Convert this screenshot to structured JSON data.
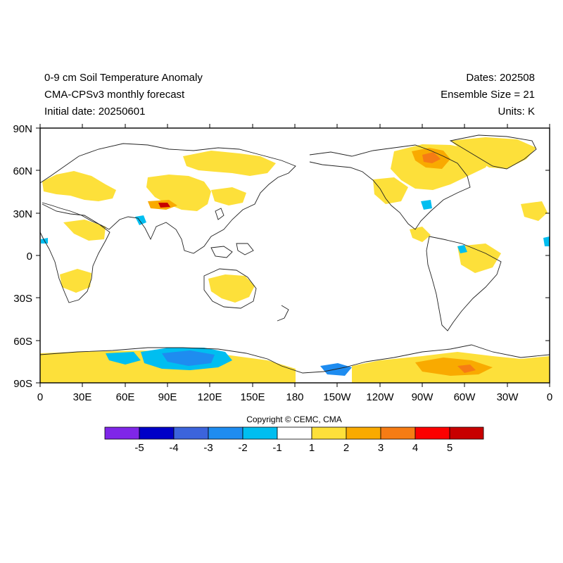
{
  "header": {
    "title_line1": "0-9 cm Soil Temperature Anomaly",
    "title_line2": "CMA-CPSv3 monthly forecast",
    "title_line3": "Initial date: 20250601",
    "dates": "Dates: 202508",
    "ensemble": "Ensemble Size = 21",
    "units": "Units: K"
  },
  "axes": {
    "lat_labels": [
      "90N",
      "60N",
      "30N",
      "0",
      "30S",
      "60S",
      "90S"
    ],
    "lon_labels": [
      "0",
      "30E",
      "60E",
      "90E",
      "120E",
      "150E",
      "180",
      "150W",
      "120W",
      "90W",
      "60W",
      "30W",
      "0"
    ]
  },
  "copyright": "Copyright © CEMC, CMA",
  "colorbar": {
    "colors": [
      "#7f26e8",
      "#0000c8",
      "#3c64dc",
      "#1e8cf0",
      "#00bef0",
      "#ffffff",
      "#fde03a",
      "#f9aa00",
      "#f67c14",
      "#fc0000",
      "#c80000"
    ],
    "labels": [
      "-5",
      "-4",
      "-3",
      "-2",
      "-1",
      "1",
      "2",
      "3",
      "4",
      "5"
    ]
  }
}
